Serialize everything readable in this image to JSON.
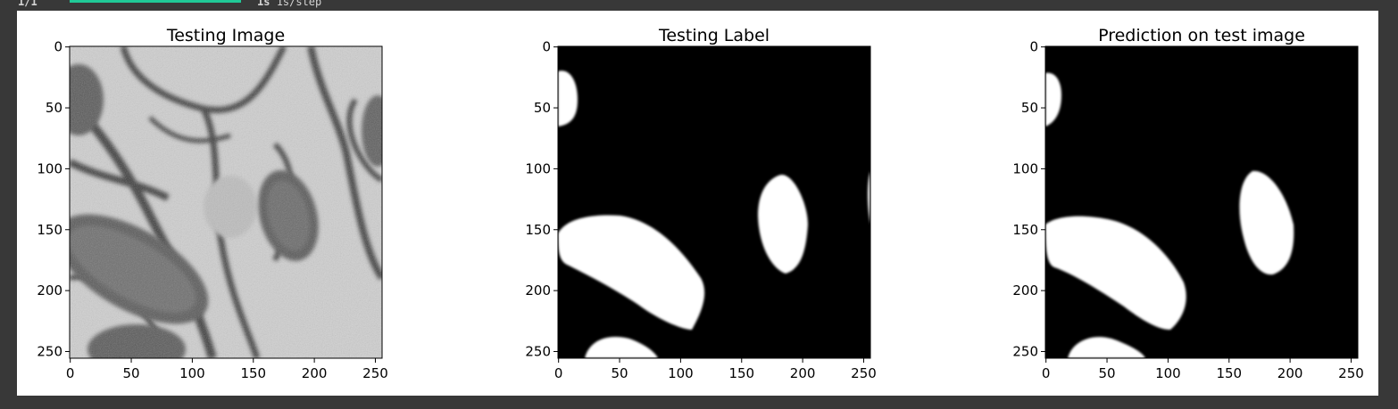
{
  "progress": {
    "step": "1/1",
    "fraction": 1.0,
    "time": "1s",
    "rate": "1s/step"
  },
  "colors": {
    "background": "#383838",
    "progress": "#20c997",
    "figure": "#ffffff"
  },
  "panels": [
    {
      "title": "Testing Image",
      "kind": "grayscale-microscopy",
      "xticks": [
        "0",
        "50",
        "100",
        "150",
        "200",
        "250"
      ],
      "yticks": [
        "0",
        "50",
        "100",
        "150",
        "200",
        "250"
      ]
    },
    {
      "title": "Testing Label",
      "kind": "binary-mask",
      "xticks": [
        "0",
        "50",
        "100",
        "150",
        "200",
        "250"
      ],
      "yticks": [
        "0",
        "50",
        "100",
        "150",
        "200",
        "250"
      ]
    },
    {
      "title": "Prediction on test image",
      "kind": "binary-mask",
      "xticks": [
        "0",
        "50",
        "100",
        "150",
        "200",
        "250"
      ],
      "yticks": [
        "0",
        "50",
        "100",
        "150",
        "200",
        "250"
      ]
    }
  ]
}
